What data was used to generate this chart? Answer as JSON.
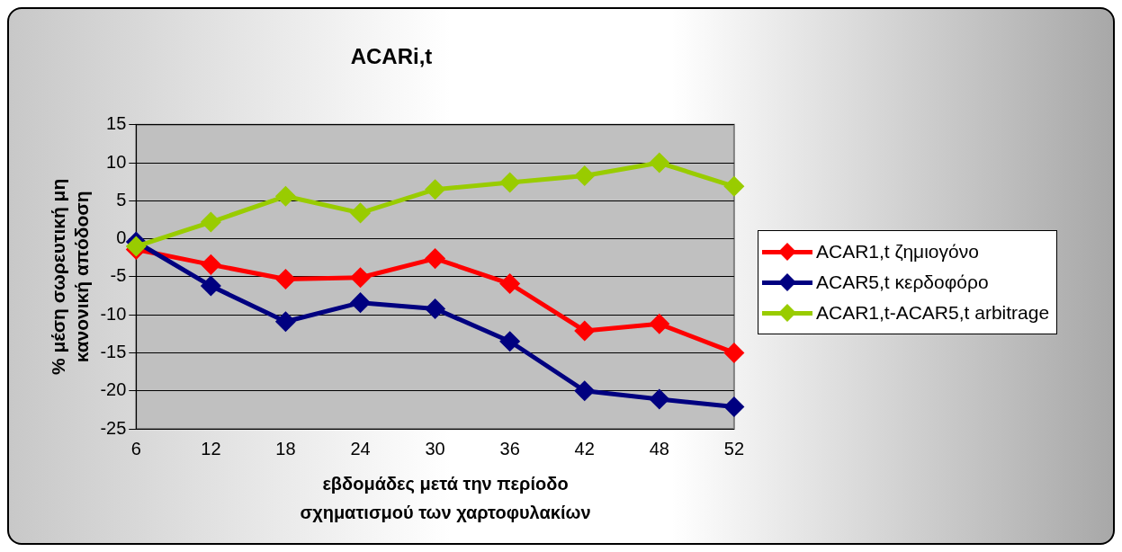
{
  "chart_data": {
    "type": "line",
    "title": "ACARi,t",
    "xlabel": "εβδομάδες μετά την περίοδο σχηματισμού των χαρτοφυλακίων",
    "ylabel": "% μέση σωρευτική μη κανονική απόδοση",
    "categories": [
      "6",
      "12",
      "18",
      "24",
      "30",
      "36",
      "42",
      "48",
      "52"
    ],
    "series": [
      {
        "name": "ACAR1,t ζημιογόνο",
        "color": "#ff0000",
        "values": [
          -1.4,
          -3.4,
          -5.3,
          -5.1,
          -2.6,
          -5.9,
          -12.1,
          -11.2,
          -15.0
        ]
      },
      {
        "name": "ACAR5,t κερδοφόρο",
        "color": "#000080",
        "values": [
          -0.4,
          -6.2,
          -10.9,
          -8.4,
          -9.2,
          -13.5,
          -20.0,
          -21.1,
          -22.1
        ]
      },
      {
        "name": "ACAR1,t-ACAR5,t arbitrage",
        "color": "#99cc00",
        "values": [
          -1.0,
          2.2,
          5.6,
          3.4,
          6.5,
          7.4,
          8.3,
          10.0,
          6.9
        ]
      }
    ],
    "ylim": [
      -25,
      15
    ],
    "yticks": [
      -25,
      -20,
      -15,
      -10,
      -5,
      0,
      5,
      10,
      15
    ],
    "grid": "y",
    "legend": "right",
    "marker": "diamond",
    "line_style": "solid"
  }
}
